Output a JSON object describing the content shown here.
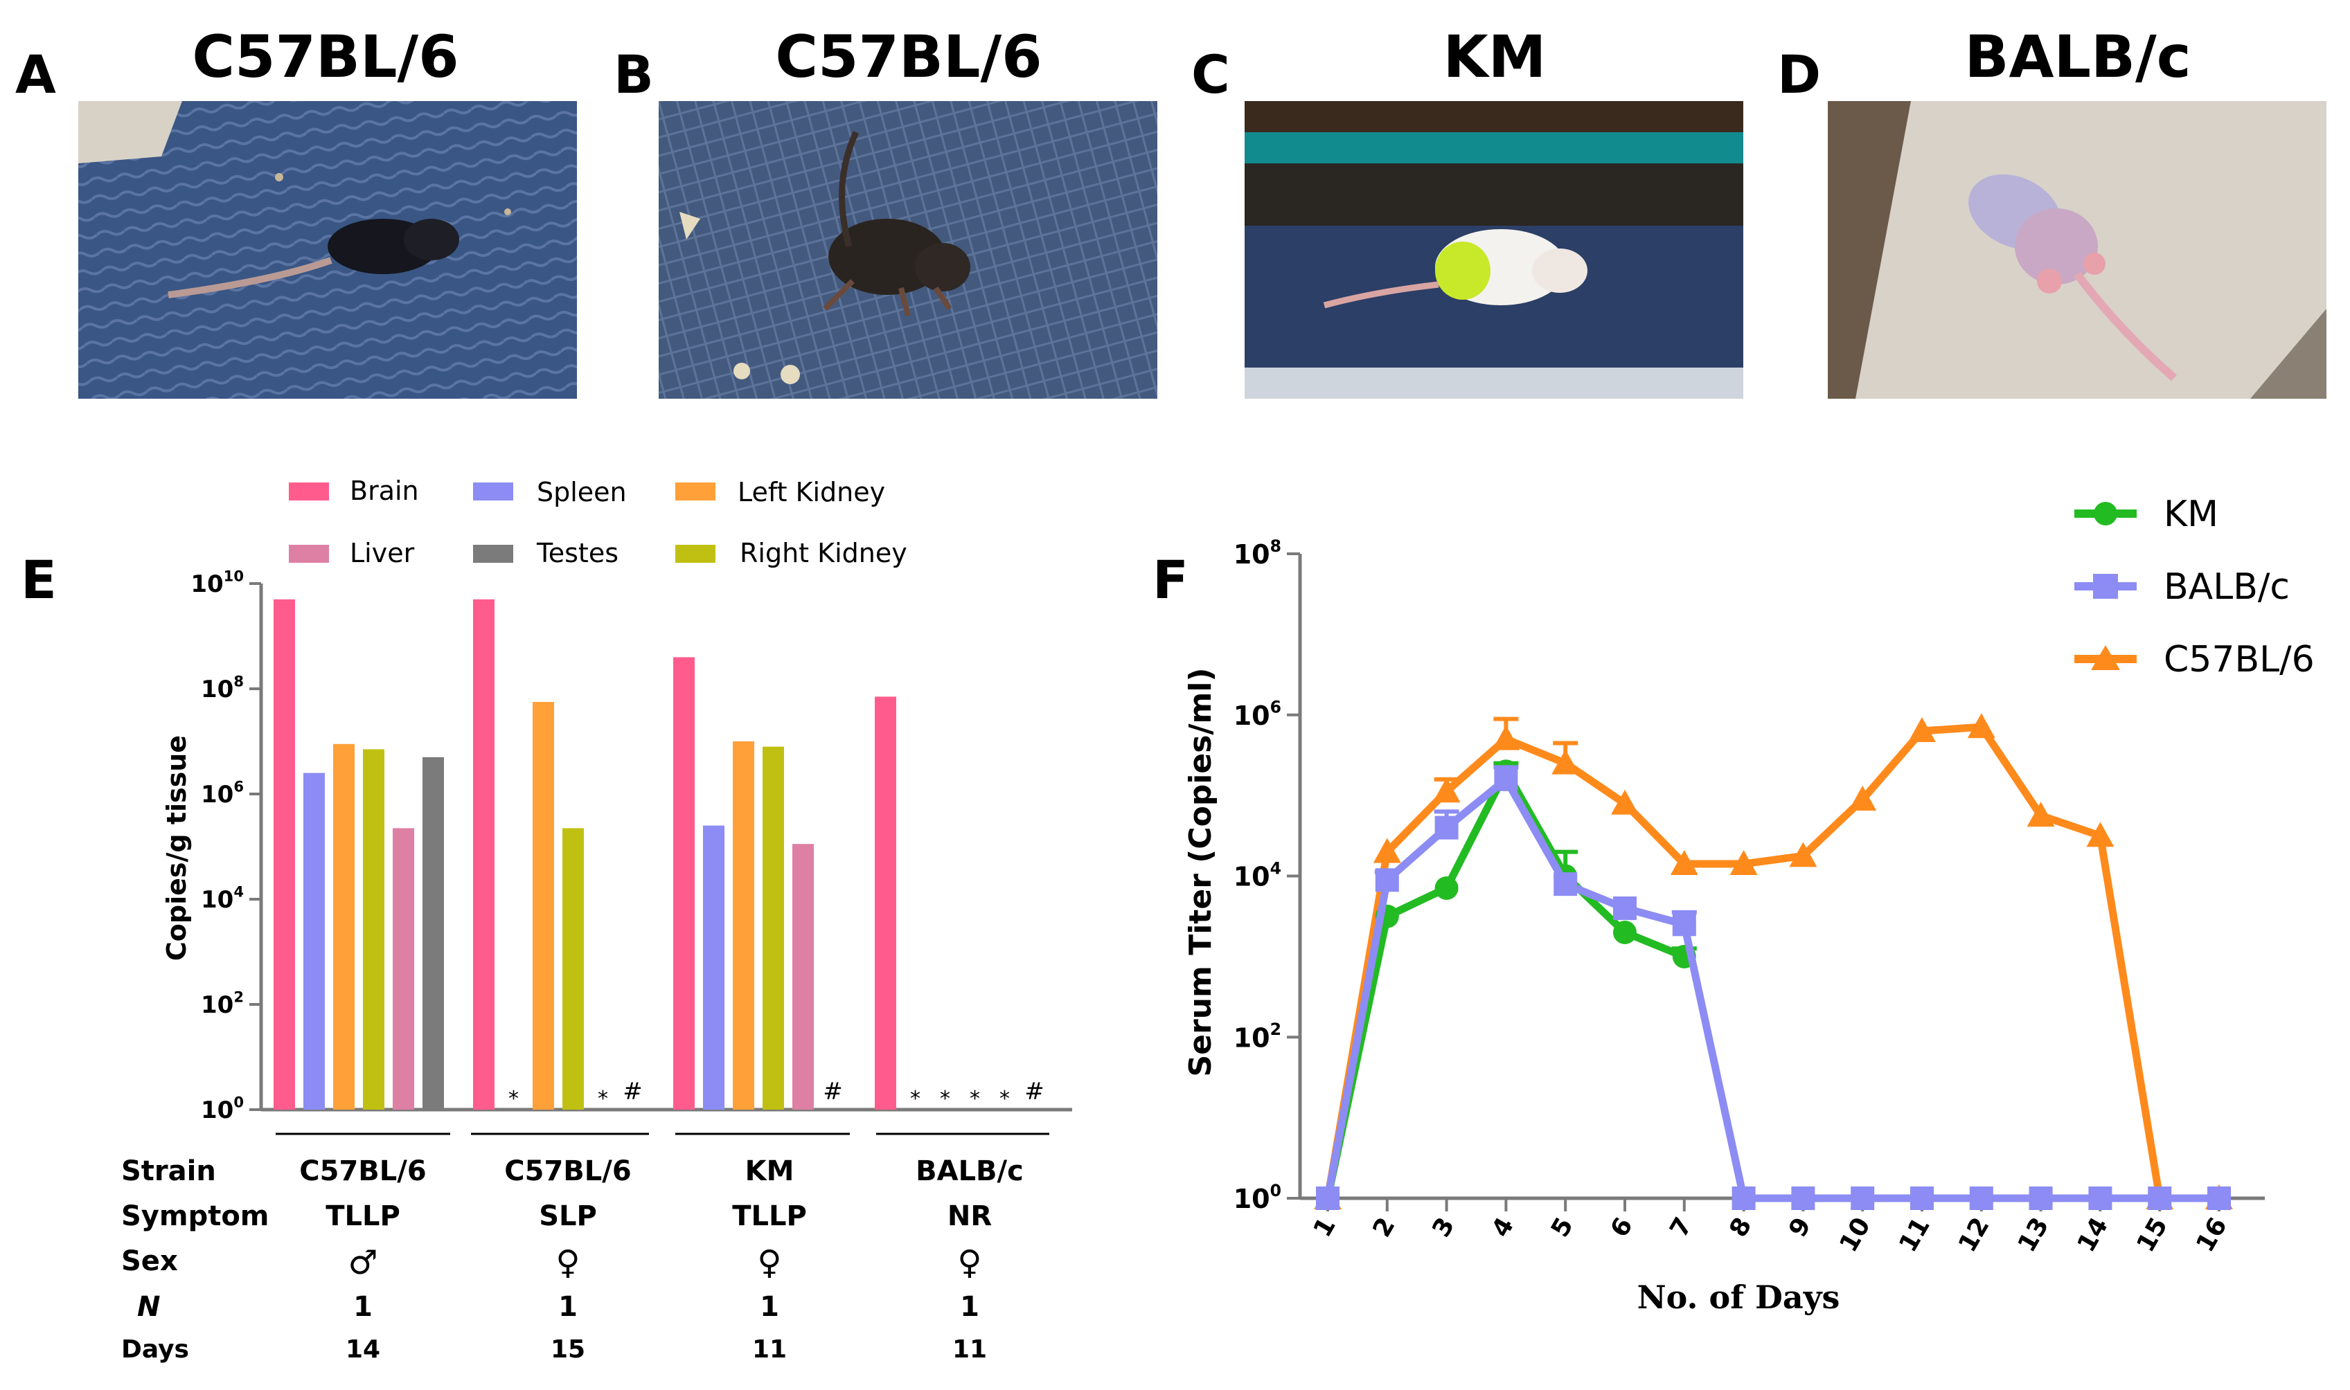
{
  "panels": {
    "a": {
      "letter": "A",
      "title": "C57BL/6"
    },
    "b": {
      "letter": "B",
      "title": "C57BL/6"
    },
    "c": {
      "letter": "C",
      "title": "KM"
    },
    "d": {
      "letter": "D",
      "title": "BALB/c"
    },
    "e": {
      "letter": "E"
    },
    "f": {
      "letter": "F"
    }
  },
  "colors": {
    "brain": "#FF5C8D",
    "liver": "#DE7FA4",
    "spleen": "#8C8CF4",
    "testes": "#7B7B7B",
    "left_kidney": "#FFA038",
    "right_kidney": "#C0C012",
    "km": "#22BB22",
    "balbc": "#8C8CF4",
    "c57": "#FF8A1C"
  },
  "chart_data": [
    {
      "type": "bar",
      "panel": "E",
      "ylabel": "Copies/g tissue",
      "yscale": "log10",
      "ylim": [
        1,
        10000000000
      ],
      "yticks": [
        {
          "exp": 0,
          "label": "10",
          "sup": "0"
        },
        {
          "exp": 2,
          "label": "10",
          "sup": "2"
        },
        {
          "exp": 4,
          "label": "10",
          "sup": "4"
        },
        {
          "exp": 6,
          "label": "10",
          "sup": "6"
        },
        {
          "exp": 8,
          "label": "10",
          "sup": "8"
        },
        {
          "exp": 10,
          "label": "10",
          "sup": "10"
        }
      ],
      "legend": [
        {
          "key": "brain",
          "label": "Brain"
        },
        {
          "key": "spleen",
          "label": "Spleen"
        },
        {
          "key": "left_kidney",
          "label": "Left Kidney"
        },
        {
          "key": "liver",
          "label": "Liver"
        },
        {
          "key": "testes",
          "label": "Testes"
        },
        {
          "key": "right_kidney",
          "label": "Right Kidney"
        }
      ],
      "groups": [
        {
          "bars": [
            {
              "tissue": "brain",
              "log10": 9.7
            },
            {
              "tissue": "spleen",
              "log10": 6.4
            },
            {
              "tissue": "left_kidney",
              "log10": 6.95
            },
            {
              "tissue": "right_kidney",
              "log10": 6.85
            },
            {
              "tissue": "liver",
              "log10": 5.35
            },
            {
              "tissue": "testes",
              "log10": 6.7
            }
          ],
          "marks": []
        },
        {
          "bars": [
            {
              "tissue": "brain",
              "log10": 9.7
            },
            {
              "tissue": "left_kidney",
              "log10": 7.75
            },
            {
              "tissue": "right_kidney",
              "log10": 5.35
            }
          ],
          "marks": [
            {
              "slot": 1,
              "symbol": "*"
            },
            {
              "slot": 4,
              "symbol": "*"
            },
            {
              "slot": 5,
              "symbol": "#"
            }
          ]
        },
        {
          "bars": [
            {
              "tissue": "brain",
              "log10": 8.6
            },
            {
              "tissue": "spleen",
              "log10": 5.4
            },
            {
              "tissue": "left_kidney",
              "log10": 7.0
            },
            {
              "tissue": "right_kidney",
              "log10": 6.9
            },
            {
              "tissue": "liver",
              "log10": 5.05
            }
          ],
          "marks": [
            {
              "slot": 5,
              "symbol": "#"
            }
          ]
        },
        {
          "bars": [
            {
              "tissue": "brain",
              "log10": 7.85
            }
          ],
          "marks": [
            {
              "slot": 1,
              "symbol": "*"
            },
            {
              "slot": 2,
              "symbol": "*"
            },
            {
              "slot": 3,
              "symbol": "*"
            },
            {
              "slot": 4,
              "symbol": "*"
            },
            {
              "slot": 5,
              "symbol": "#"
            }
          ]
        }
      ],
      "table": {
        "row_labels": [
          "Strain",
          "Symptom",
          "Sex",
          "N",
          "Days"
        ],
        "columns": [
          {
            "strain": "C57BL/6",
            "symptom": "TLLP",
            "sex": "♂",
            "n": "1",
            "days": "14"
          },
          {
            "strain": "C57BL/6",
            "symptom": "SLP",
            "sex": "♀",
            "n": "1",
            "days": "15"
          },
          {
            "strain": "KM",
            "symptom": "TLLP",
            "sex": "♀",
            "n": "1",
            "days": "11"
          },
          {
            "strain": "BALB/c",
            "symptom": "NR",
            "sex": "♀",
            "n": "1",
            "days": "11"
          }
        ]
      }
    },
    {
      "type": "line",
      "panel": "F",
      "xlabel": "No. of Days",
      "ylabel": "Serum Titer (Copies/ml)",
      "yscale": "log10",
      "ylim": [
        1,
        100000000
      ],
      "x": [
        1,
        2,
        3,
        4,
        5,
        6,
        7,
        8,
        9,
        10,
        11,
        12,
        13,
        14,
        15,
        16
      ],
      "yticks": [
        {
          "exp": 0,
          "label": "10",
          "sup": "0"
        },
        {
          "exp": 2,
          "label": "10",
          "sup": "2"
        },
        {
          "exp": 4,
          "label": "10",
          "sup": "4"
        },
        {
          "exp": 6,
          "label": "10",
          "sup": "6"
        },
        {
          "exp": 8,
          "label": "10",
          "sup": "8"
        }
      ],
      "series": [
        {
          "key": "km",
          "name": "KM",
          "marker": "circle",
          "x": [
            1,
            2,
            3,
            4,
            5,
            6,
            7
          ],
          "log10": [
            0,
            3.5,
            3.85,
            5.3,
            4.0,
            3.3,
            3.0
          ],
          "err": [
            0,
            0,
            0,
            0.1,
            0.3,
            0,
            0.1
          ]
        },
        {
          "key": "balbc",
          "name": "BALB/c",
          "marker": "square",
          "x": [
            1,
            2,
            3,
            4,
            5,
            6,
            7,
            8,
            9,
            10,
            11,
            12,
            13,
            14,
            15,
            16
          ],
          "log10": [
            0,
            3.95,
            4.6,
            5.2,
            3.9,
            3.6,
            3.4,
            0,
            0,
            0,
            0,
            0,
            0,
            0,
            0,
            0
          ],
          "err": [
            0,
            0.1,
            0.2,
            0.15,
            0,
            0,
            0.15,
            0,
            0,
            0,
            0,
            0,
            0,
            0,
            0,
            0
          ]
        },
        {
          "key": "c57",
          "name": "C57BL/6",
          "marker": "triangle",
          "x": [
            1,
            2,
            3,
            4,
            5,
            6,
            7,
            8,
            9,
            10,
            11,
            12,
            13,
            14,
            15,
            16
          ],
          "log10": [
            0,
            4.3,
            5.05,
            5.7,
            5.4,
            4.9,
            4.15,
            4.15,
            4.25,
            4.95,
            5.8,
            5.85,
            4.75,
            4.5,
            0,
            0
          ],
          "err": [
            0,
            0,
            0.15,
            0.25,
            0.25,
            0,
            0,
            0,
            0,
            0,
            0,
            0,
            0,
            0,
            0,
            0
          ]
        }
      ]
    }
  ]
}
